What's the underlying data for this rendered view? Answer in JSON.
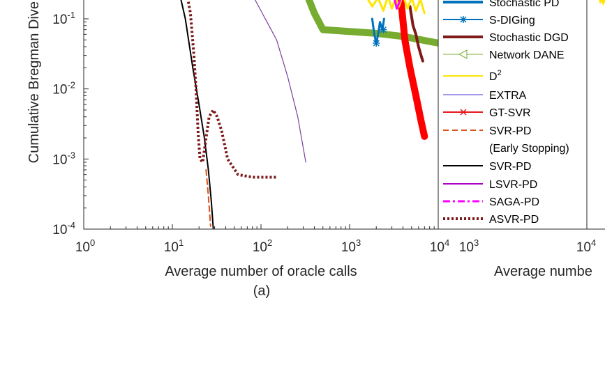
{
  "chart_data": [
    {
      "type": "line",
      "panel_label": "(a)",
      "xlabel": "Average number of oracle calls",
      "ylabel": "Cumulative Bregman Dive",
      "xscale": "log",
      "yscale": "log",
      "xlim": [
        1,
        10000
      ],
      "ylim": [
        0.0001,
        0.2
      ],
      "xticks": [
        {
          "value": 1,
          "base": "10",
          "exp": "0"
        },
        {
          "value": 10,
          "base": "10",
          "exp": "1"
        },
        {
          "value": 100,
          "base": "10",
          "exp": "2"
        },
        {
          "value": 1000,
          "base": "10",
          "exp": "3"
        },
        {
          "value": 10000,
          "base": "10",
          "exp": "4"
        }
      ],
      "yticks": [
        {
          "value": 0.1,
          "base": "10",
          "exp": "-1"
        },
        {
          "value": 0.01,
          "base": "10",
          "exp": "-2"
        },
        {
          "value": 0.001,
          "base": "10",
          "exp": "-3"
        },
        {
          "value": 0.0001,
          "base": "10",
          "exp": "-4"
        }
      ],
      "legend_position": "right",
      "legend": [
        {
          "label": "Stochastic PD",
          "color": "#0072BD",
          "style": "solid",
          "marker": "none",
          "width": 4
        },
        {
          "label": "S-DIGing",
          "color": "#0072BD",
          "style": "solid",
          "marker": "asterisk",
          "width": 2
        },
        {
          "label": "Stochastic DGD",
          "color": "#7E1A1A",
          "style": "solid",
          "marker": "none",
          "width": 4
        },
        {
          "label": "Network DANE",
          "color": "#77AC30",
          "style": "solid",
          "marker": "triangle-left",
          "width": 1
        },
        {
          "label": "D",
          "sup": "2",
          "color": "#FFE600",
          "style": "solid",
          "marker": "none",
          "width": 2
        },
        {
          "label": "EXTRA",
          "color": "#A89BE8",
          "style": "solid",
          "marker": "none",
          "width": 2
        },
        {
          "label": "GT-SVR",
          "color": "#E8141A",
          "style": "solid",
          "marker": "x",
          "width": 2
        },
        {
          "label": "SVR-PD",
          "label2": "(Early Stopping)",
          "color": "#D95319",
          "style": "dashed",
          "marker": "none",
          "width": 2
        },
        {
          "label": "SVR-PD",
          "color": "#000000",
          "style": "solid",
          "marker": "none",
          "width": 2
        },
        {
          "label": "LSVR-PD",
          "color": "#B000C8",
          "style": "solid",
          "marker": "none",
          "width": 2
        },
        {
          "label": "SAGA-PD",
          "color": "#FF00FF",
          "style": "dashdot",
          "marker": "none",
          "width": 3
        },
        {
          "label": "ASVR-PD",
          "color": "#7E1A1A",
          "style": "dotted",
          "marker": "none",
          "width": 4
        }
      ],
      "series": [
        {
          "name": "SVR-PD",
          "color": "#000000",
          "style": "solid",
          "width": 2,
          "points": [
            [
              11.5,
              0.3
            ],
            [
              14,
              0.1
            ],
            [
              17,
              0.02
            ],
            [
              20,
              0.006
            ],
            [
              23,
              0.002
            ],
            [
              25.5,
              0.0007
            ],
            [
              27.5,
              0.00025
            ],
            [
              29,
              0.0001
            ]
          ]
        },
        {
          "name": "SVR-PD (Early Stopping)",
          "color": "#D95319",
          "style": "dashed",
          "width": 2,
          "points": [
            [
              24,
              0.0007
            ],
            [
              25.5,
              0.0003
            ],
            [
              27,
              0.00011
            ]
          ]
        },
        {
          "name": "ASVR-PD",
          "color": "#7E1A1A",
          "style": "dotted",
          "width": 4,
          "points": [
            [
              14,
              0.3
            ],
            [
              16,
              0.12
            ],
            [
              17.5,
              0.03
            ],
            [
              18.5,
              0.01
            ],
            [
              19.5,
              0.0025
            ],
            [
              20.5,
              0.001
            ],
            [
              22,
              0.0009
            ],
            [
              24,
              0.002
            ],
            [
              26,
              0.004
            ],
            [
              29,
              0.005
            ],
            [
              32,
              0.004
            ],
            [
              36,
              0.0025
            ],
            [
              42,
              0.001
            ],
            [
              55,
              0.0006
            ],
            [
              80,
              0.00055
            ],
            [
              150,
              0.00055
            ]
          ]
        },
        {
          "name": "LSVR-PD",
          "color": "#7B3F9E",
          "style": "solid",
          "width": 1.2,
          "points": [
            [
              70,
              0.3
            ],
            [
              100,
              0.13
            ],
            [
              150,
              0.05
            ],
            [
              200,
              0.015
            ],
            [
              260,
              0.004
            ],
            [
              320,
              0.0009
            ]
          ]
        },
        {
          "name": "Network DANE",
          "color": "#77AC30",
          "style": "solid",
          "width": 10,
          "points": [
            [
              300,
              0.3
            ],
            [
              400,
              0.12
            ],
            [
              500,
              0.07
            ],
            [
              1000,
              0.066
            ],
            [
              2000,
              0.062
            ],
            [
              4000,
              0.056
            ],
            [
              10000,
              0.045
            ]
          ]
        },
        {
          "name": "S-DIGing",
          "color": "#0072BD",
          "style": "solid",
          "width": 3,
          "points": [
            [
              1800,
              0.1
            ],
            [
              1900,
              0.06
            ],
            [
              2000,
              0.045
            ],
            [
              2100,
              0.06
            ],
            [
              2200,
              0.09
            ],
            [
              2350,
              0.07
            ],
            [
              2450,
              0.1
            ]
          ]
        },
        {
          "name": "Stochastic DGD",
          "color": "#7E1A1A",
          "style": "solid",
          "width": 4,
          "points": [
            [
              4800,
              0.15
            ],
            [
              5200,
              0.08
            ],
            [
              5600,
              0.06
            ],
            [
              6000,
              0.04
            ],
            [
              6400,
              0.03
            ],
            [
              6700,
              0.025
            ]
          ]
        },
        {
          "name": "GT-SVR",
          "color": "#FF0000",
          "style": "solid",
          "width": 10,
          "points": [
            [
              3700,
              0.25
            ],
            [
              4200,
              0.05
            ],
            [
              4800,
              0.02
            ],
            [
              5600,
              0.008
            ],
            [
              6400,
              0.0035
            ],
            [
              7000,
              0.0021
            ]
          ]
        },
        {
          "name": "D2",
          "color": "#FFE600",
          "style": "solid",
          "width": 3,
          "points": [
            [
              1500,
              0.22
            ],
            [
              1800,
              0.15
            ],
            [
              2100,
              0.2
            ],
            [
              2400,
              0.13
            ],
            [
              2700,
              0.21
            ],
            [
              3000,
              0.14
            ],
            [
              3300,
              0.2
            ],
            [
              3600,
              0.15
            ],
            [
              4000,
              0.22
            ],
            [
              4500,
              0.14
            ],
            [
              5000,
              0.2
            ],
            [
              5600,
              0.13
            ],
            [
              6300,
              0.19
            ],
            [
              7000,
              0.12
            ]
          ]
        },
        {
          "name": "SAGA-PD",
          "color": "#FF00FF",
          "style": "solid",
          "width": 3,
          "points": [
            [
              3200,
              0.2
            ],
            [
              3400,
              0.14
            ],
            [
              3700,
              0.18
            ],
            [
              4000,
              0.22
            ]
          ]
        }
      ]
    },
    {
      "type": "line",
      "xlabel": "Average numbe",
      "xscale": "log",
      "xlim": [
        1000,
        10000
      ],
      "xticks": [
        {
          "value": 1000,
          "base": "10",
          "exp": "3"
        },
        {
          "value": 10000,
          "base": "10",
          "exp": "4"
        }
      ]
    }
  ]
}
